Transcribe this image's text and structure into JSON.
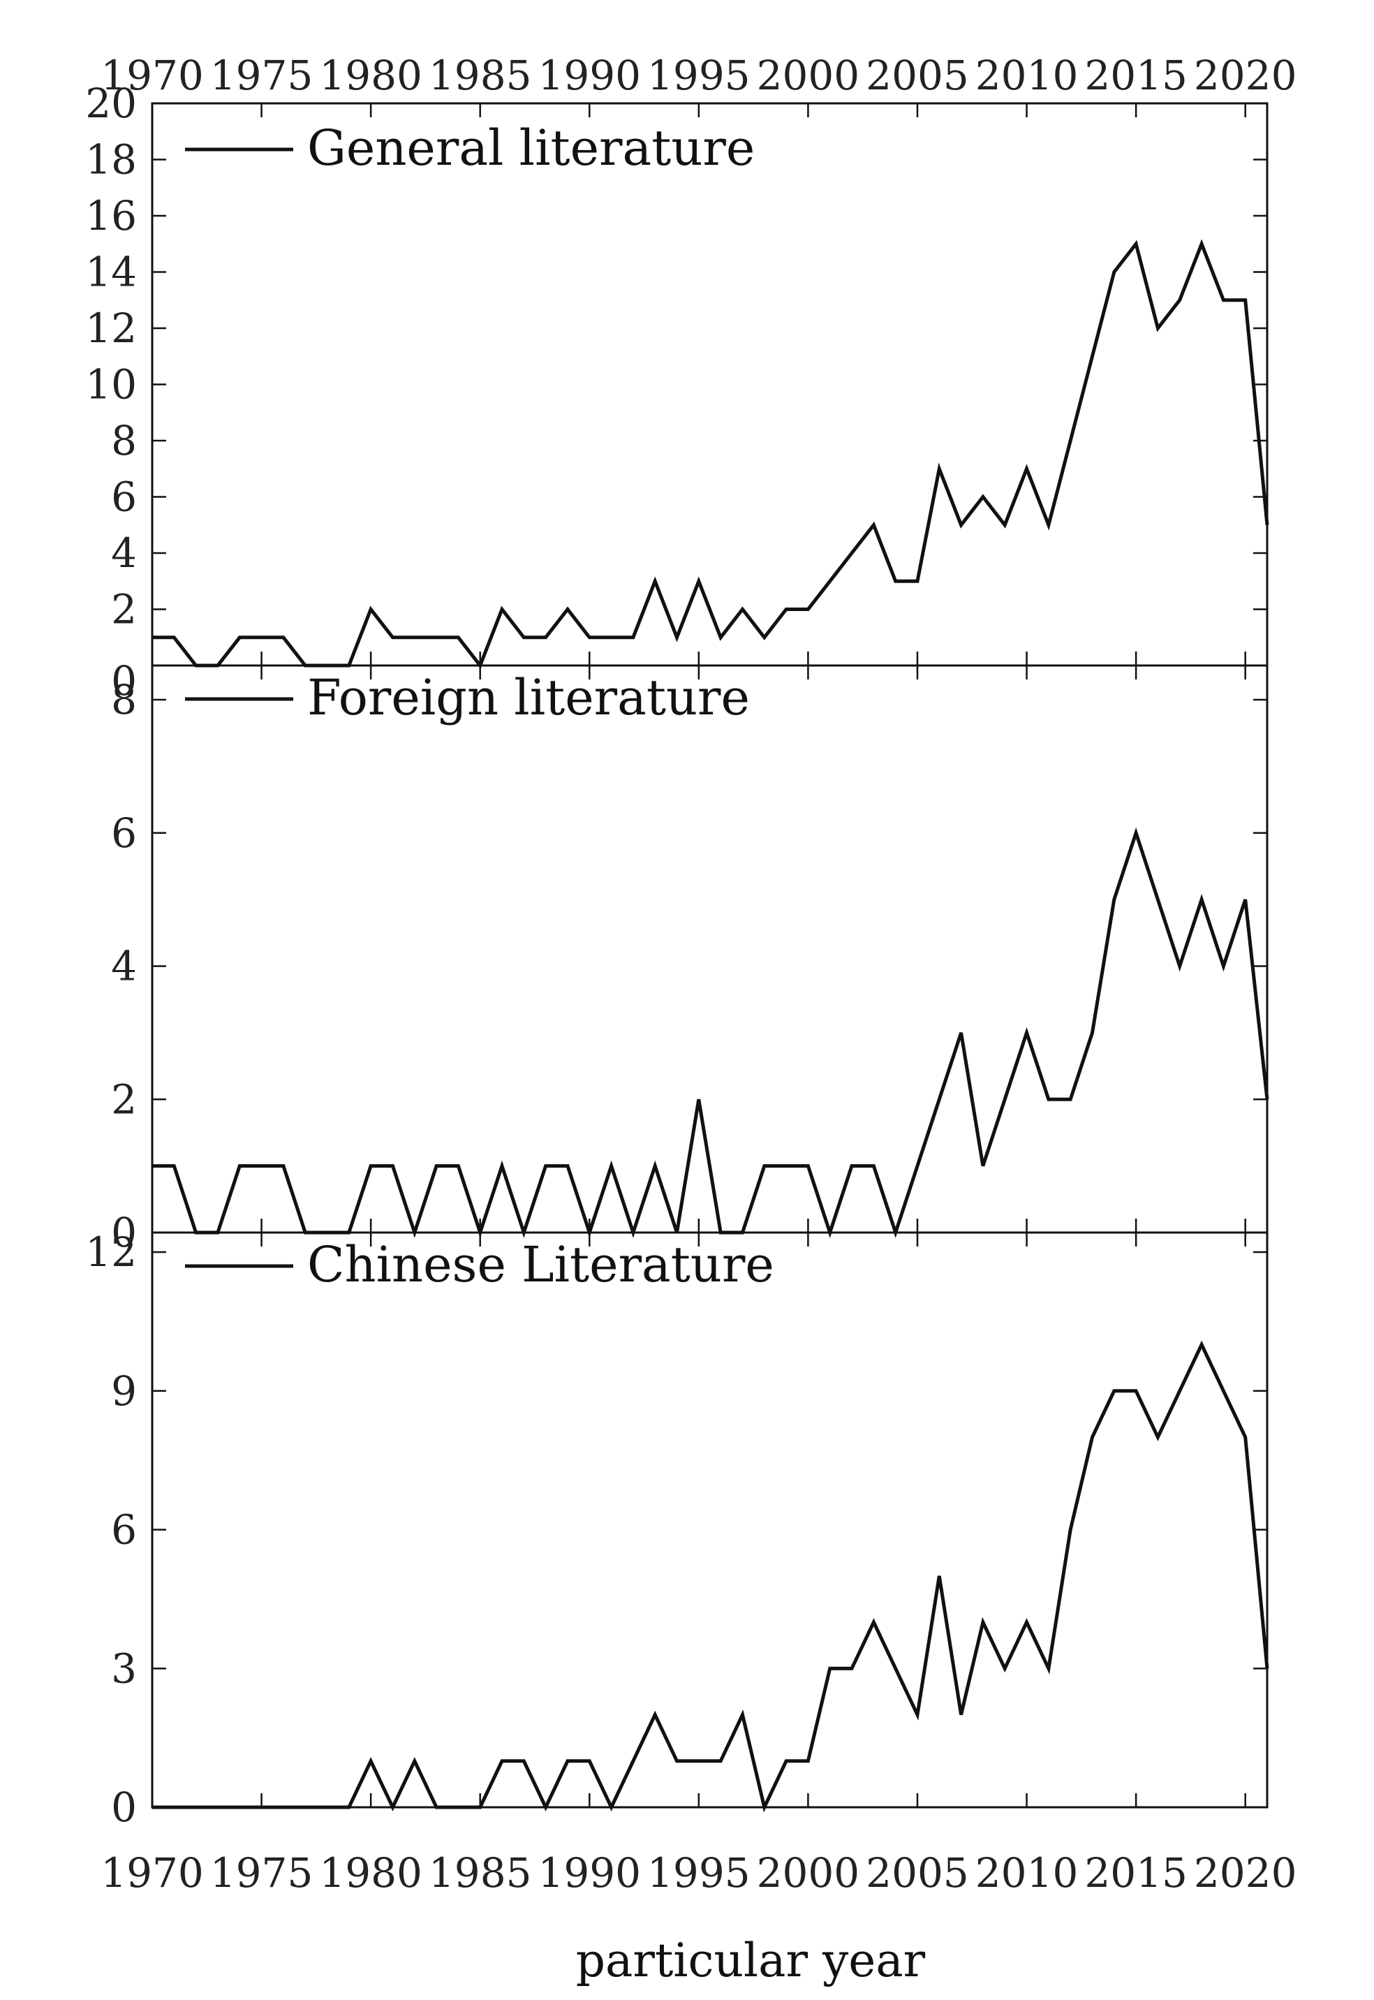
{
  "chart_data": {
    "type": "line",
    "xlabel": "particular year",
    "xlim": [
      1970,
      2021
    ],
    "x_ticks": [
      1970,
      1975,
      1980,
      1985,
      1990,
      1995,
      2000,
      2005,
      2010,
      2015,
      2020
    ],
    "x_tick_labels": [
      "1970",
      "1975",
      "1980",
      "1985",
      "1990",
      "1995",
      "2000",
      "2005",
      "2010",
      "2015",
      "2020"
    ],
    "x": [
      1970,
      1971,
      1972,
      1973,
      1974,
      1975,
      1976,
      1977,
      1978,
      1979,
      1980,
      1981,
      1982,
      1983,
      1984,
      1985,
      1986,
      1987,
      1988,
      1989,
      1990,
      1991,
      1992,
      1993,
      1994,
      1995,
      1996,
      1997,
      1998,
      1999,
      2000,
      2001,
      2002,
      2003,
      2004,
      2005,
      2006,
      2007,
      2008,
      2009,
      2010,
      2011,
      2012,
      2013,
      2014,
      2015,
      2016,
      2017,
      2018,
      2019,
      2020,
      2021
    ],
    "grid": false,
    "legend_position": "top-left",
    "line_color": "#111111",
    "panels": [
      {
        "legend": "General literature",
        "ylim": [
          0,
          20
        ],
        "y_ticks": [
          0,
          2,
          4,
          6,
          8,
          10,
          12,
          14,
          16,
          18,
          20
        ],
        "y_tick_labels": [
          "0",
          "2",
          "4",
          "6",
          "8",
          "10",
          "12",
          "14",
          "16",
          "18",
          "20"
        ],
        "values": [
          1,
          1,
          0,
          0,
          1,
          1,
          1,
          0,
          0,
          0,
          2,
          1,
          1,
          1,
          1,
          0,
          2,
          1,
          1,
          2,
          1,
          1,
          1,
          3,
          1,
          3,
          1,
          2,
          1,
          2,
          2,
          3,
          4,
          5,
          3,
          3,
          7,
          5,
          6,
          5,
          7,
          5,
          8,
          11,
          14,
          15,
          12,
          13,
          15,
          13,
          13,
          5
        ]
      },
      {
        "legend": "Foreign literature",
        "ylim": [
          0,
          8
        ],
        "y_ticks": [
          0,
          2,
          4,
          6,
          8
        ],
        "y_tick_labels": [
          "0",
          "2",
          "4",
          "6",
          "8"
        ],
        "values": [
          1,
          1,
          0,
          0,
          1,
          1,
          1,
          0,
          0,
          0,
          1,
          1,
          0,
          1,
          1,
          0,
          1,
          0,
          1,
          1,
          0,
          1,
          0,
          1,
          0,
          2,
          0,
          0,
          1,
          1,
          1,
          0,
          1,
          1,
          0,
          1,
          2,
          3,
          1,
          2,
          3,
          2,
          2,
          3,
          5,
          6,
          5,
          4,
          5,
          4,
          5,
          2
        ]
      },
      {
        "legend": "Chinese Literature",
        "ylim": [
          0,
          12
        ],
        "y_ticks": [
          0,
          3,
          6,
          9,
          12
        ],
        "y_tick_labels": [
          "0",
          "3",
          "6",
          "9",
          "12"
        ],
        "values": [
          0,
          0,
          0,
          0,
          0,
          0,
          0,
          0,
          0,
          0,
          1,
          0,
          1,
          0,
          0,
          0,
          1,
          1,
          0,
          1,
          1,
          0,
          1,
          2,
          1,
          1,
          1,
          2,
          0,
          1,
          1,
          3,
          3,
          4,
          3,
          2,
          5,
          2,
          4,
          3,
          4,
          3,
          6,
          8,
          9,
          9,
          8,
          9,
          10,
          9,
          8,
          3
        ]
      }
    ]
  }
}
